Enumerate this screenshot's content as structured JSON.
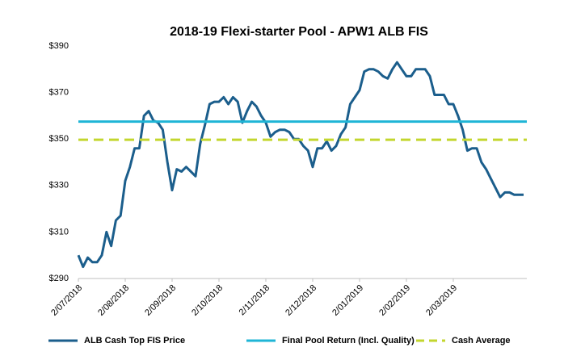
{
  "chart_data": {
    "type": "line",
    "title": "2018-19 Flexi-starter Pool - APW1 ALB FIS",
    "categories": [
      "2/07/2018",
      null,
      null,
      null,
      null,
      null,
      null,
      null,
      null,
      null,
      "2/08/2018",
      null,
      null,
      null,
      null,
      null,
      null,
      null,
      null,
      null,
      "2/09/2018",
      null,
      null,
      null,
      null,
      null,
      null,
      null,
      null,
      null,
      "2/10/2018",
      null,
      null,
      null,
      null,
      null,
      null,
      null,
      null,
      null,
      "2/11/2018",
      null,
      null,
      null,
      null,
      null,
      null,
      null,
      null,
      null,
      "2/12/2018",
      null,
      null,
      null,
      null,
      null,
      null,
      null,
      null,
      null,
      "2/01/2019",
      null,
      null,
      null,
      null,
      null,
      null,
      null,
      null,
      null,
      "2/02/2019",
      null,
      null,
      null,
      null,
      null,
      null,
      null,
      null,
      null,
      "2/03/2019",
      null,
      null,
      null,
      null,
      null,
      null,
      null,
      null,
      null,
      null,
      null,
      null,
      null,
      null,
      null
    ],
    "series": [
      {
        "name": "ALB Cash Top FIS Price",
        "color": "#1b5e8c",
        "style": "solid",
        "values": [
          300,
          295,
          299,
          297,
          297,
          300,
          310,
          304,
          315,
          317,
          332,
          338,
          346,
          346,
          360,
          362,
          358,
          357,
          354,
          340,
          328,
          337,
          336,
          338,
          336,
          334,
          348,
          356,
          365,
          366,
          366,
          368,
          365,
          368,
          366,
          357,
          362,
          366,
          364,
          360,
          357,
          351,
          353,
          354,
          354,
          353,
          350,
          350,
          347,
          345,
          338,
          346,
          346,
          349,
          345,
          347,
          352,
          355,
          365,
          368,
          371,
          379,
          380,
          380,
          379,
          377,
          376,
          380,
          383,
          380,
          377,
          377,
          380,
          380,
          380,
          377,
          369,
          369,
          369,
          365,
          365,
          360,
          354,
          345,
          346,
          346,
          340,
          337,
          333,
          329,
          325,
          327,
          327,
          326,
          326,
          326
        ]
      },
      {
        "name": "Final Pool Return (Incl. Quality)",
        "color": "#1fb5d6",
        "style": "solid",
        "value": 357.5
      },
      {
        "name": "Cash Average",
        "color": "#c3d62e",
        "style": "dashed",
        "value": 349.7
      }
    ],
    "ylim": [
      290,
      390
    ],
    "yticks": [
      {
        "value": 290,
        "label": "$290"
      },
      {
        "value": 310,
        "label": "$310"
      },
      {
        "value": 330,
        "label": "$330"
      },
      {
        "value": 350,
        "label": "$350"
      },
      {
        "value": 370,
        "label": "$370"
      },
      {
        "value": 390,
        "label": "$390"
      }
    ],
    "grid": false
  }
}
